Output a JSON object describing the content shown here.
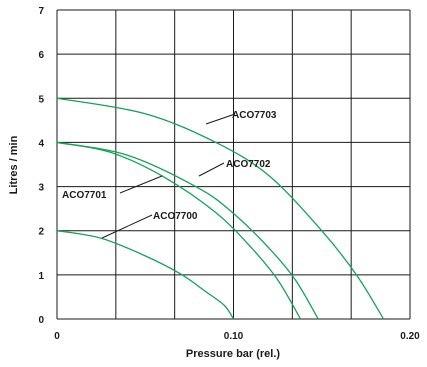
{
  "chart_data": {
    "type": "line",
    "xlabel": "Pressure bar (rel.)",
    "ylabel": "Litres / min",
    "xlim": [
      0,
      0.2
    ],
    "ylim": [
      0,
      7
    ],
    "x_ticks": [
      {
        "value": 0,
        "label": "0"
      },
      {
        "value": 0.1,
        "label": "0.10"
      },
      {
        "value": 0.2,
        "label": "0.20"
      }
    ],
    "y_ticks": [
      {
        "value": 0,
        "label": "0"
      },
      {
        "value": 1,
        "label": "1"
      },
      {
        "value": 2,
        "label": "2"
      },
      {
        "value": 3,
        "label": "3"
      },
      {
        "value": 4,
        "label": "4"
      },
      {
        "value": 5,
        "label": "5"
      },
      {
        "value": 6,
        "label": "6"
      },
      {
        "value": 7,
        "label": "7"
      }
    ],
    "grid": true,
    "grid_x_divisions": 6,
    "series": [
      {
        "name": "ACO7700",
        "color": "#1aa05a",
        "x": [
          0,
          0.025,
          0.05,
          0.07,
          0.085,
          0.095,
          0.1
        ],
        "y": [
          2,
          1.83,
          1.43,
          1.02,
          0.6,
          0.3,
          0
        ]
      },
      {
        "name": "ACO7701",
        "color": "#1aa05a",
        "x": [
          0,
          0.03,
          0.06,
          0.09,
          0.11,
          0.125,
          0.138
        ],
        "y": [
          4,
          3.78,
          3.23,
          2.41,
          1.62,
          0.89,
          0
        ]
      },
      {
        "name": "ACO7702",
        "color": "#1aa05a",
        "x": [
          0,
          0.04,
          0.08,
          0.1,
          0.12,
          0.135,
          0.148
        ],
        "y": [
          4,
          3.71,
          2.97,
          2.39,
          1.61,
          0.89,
          0
        ]
      },
      {
        "name": "ACO7703",
        "color": "#1aa05a",
        "x": [
          0,
          0.05,
          0.09,
          0.12,
          0.15,
          0.17,
          0.185
        ],
        "y": [
          5,
          4.65,
          4.0,
          3.25,
          2.0,
          0.98,
          0
        ]
      }
    ],
    "annotations": [
      {
        "series": "ACO7703",
        "text": "ACO7703",
        "point": [
          0.083,
          4.45
        ]
      },
      {
        "series": "ACO7702",
        "text": "ACO7702",
        "point": [
          0.081,
          3.2
        ]
      },
      {
        "series": "ACO7701",
        "text": "ACO7701",
        "point": [
          0.058,
          3.3
        ]
      },
      {
        "series": "ACO7700",
        "text": "ACO7700",
        "point": [
          0.026,
          1.8
        ]
      }
    ]
  }
}
